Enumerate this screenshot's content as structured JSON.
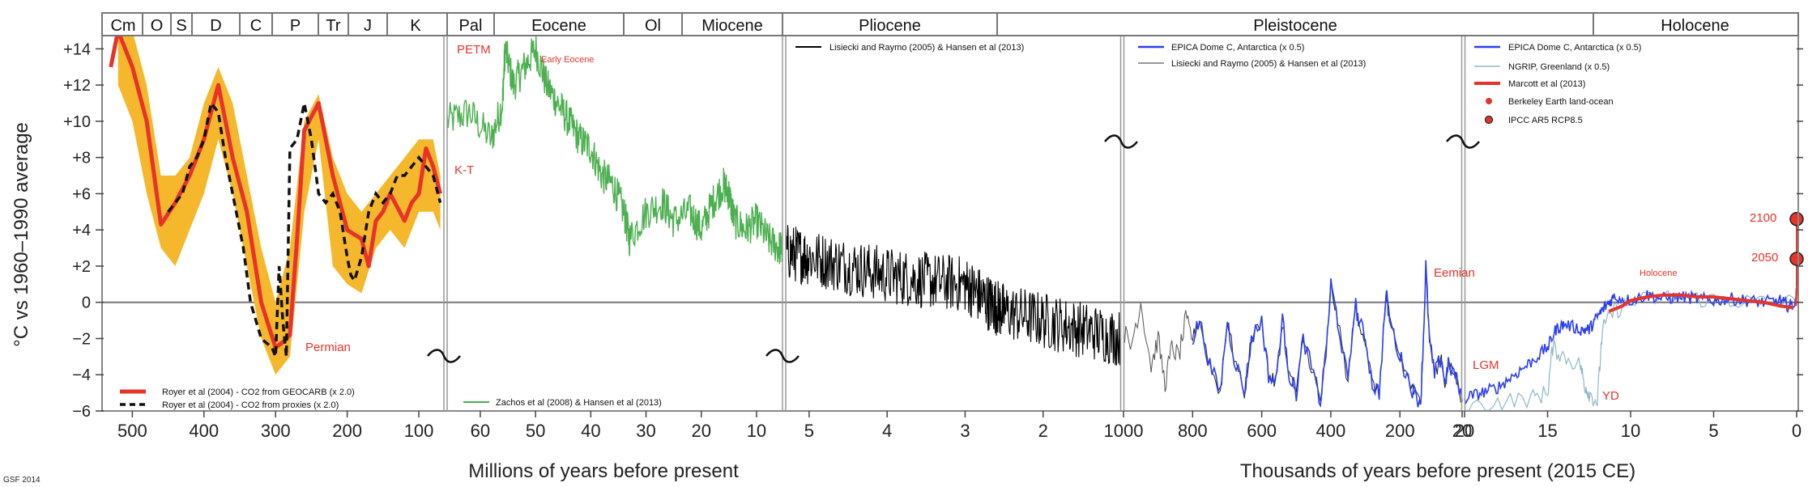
{
  "chart_data": {
    "type": "line",
    "title": "",
    "ylabel": "°C vs 1960–1990 average",
    "xlabel_left": "Millions of years before present",
    "xlabel_right": "Thousands of years before present (2015 CE)",
    "footer": "GSF 2014",
    "ylim": [
      -6,
      15
    ],
    "yticks": [
      -6,
      -4,
      -2,
      0,
      2,
      4,
      6,
      8,
      10,
      12,
      14
    ],
    "ytick_labels": [
      "−6",
      "−4",
      "−2",
      "0",
      "+2",
      "+4",
      "+6",
      "+8",
      "+10",
      "+12",
      "+14"
    ],
    "eras": [
      "Cm",
      "O",
      "S",
      "D",
      "C",
      "P",
      "Tr",
      "J",
      "K",
      "Pal",
      "Eocene",
      "Ol",
      "Miocene",
      "Pliocene",
      "Pleistocene",
      "Holocene"
    ],
    "panels": [
      {
        "name": "Phanerozoic",
        "xlim": [
          540,
          65
        ],
        "xticks": [
          500,
          400,
          300,
          200,
          100
        ],
        "xtick_labels": [
          "500",
          "400",
          "300",
          "200",
          "100"
        ],
        "series": [
          {
            "name": "Royer et al (2004) - CO2 from GEOCARB (x 2.0)",
            "color": "#e8332a",
            "x": [
              530,
              520,
              500,
              480,
              460,
              440,
              420,
              400,
              380,
              360,
              340,
              320,
              300,
              290,
              280,
              270,
              260,
              240,
              220,
              200,
              180,
              170,
              160,
              150,
              140,
              120,
              110,
              100,
              90,
              80,
              70
            ],
            "y": [
              13,
              15,
              13,
              10,
              4.3,
              5.5,
              7,
              9,
              12,
              8,
              5,
              0,
              -2.5,
              -2.2,
              -1.8,
              3.5,
              9.5,
              11,
              7,
              4,
              3.5,
              2,
              4.5,
              5,
              6,
              4.5,
              5.5,
              6,
              8.5,
              7.5,
              6
            ]
          },
          {
            "name": "Royer et al (2004) - CO2 from proxies (x 2.0)",
            "color": "#111111",
            "x": [
              450,
              440,
              430,
              420,
              410,
              400,
              390,
              380,
              370,
              360,
              345,
              335,
              320,
              305,
              300,
              295,
              290,
              285,
              280,
              270,
              260,
              250,
              240,
              230,
              220,
              210,
              200,
              195,
              190,
              180,
              170,
              160,
              150,
              140,
              130,
              120,
              110,
              100,
              90,
              80,
              70
            ],
            "y": [
              5,
              5.5,
              6,
              7.5,
              8,
              9,
              11,
              10.5,
              8,
              6,
              3,
              0,
              -2,
              -2.5,
              -3,
              2,
              -1,
              -3,
              8.5,
              9,
              11,
              9,
              6,
              5.5,
              6,
              5,
              2.5,
              1.5,
              1.2,
              2.5,
              5,
              6,
              5.5,
              6,
              7,
              7,
              7.5,
              8,
              7.5,
              7,
              5.5
            ]
          }
        ],
        "band": {
          "name": "uncertainty",
          "color": "#f5b82c",
          "x": [
            520,
            500,
            480,
            460,
            440,
            420,
            400,
            380,
            360,
            340,
            320,
            300,
            280,
            260,
            240,
            220,
            200,
            180,
            160,
            140,
            120,
            100,
            80,
            70
          ],
          "upper": [
            15,
            15,
            12,
            7,
            7,
            8,
            11,
            13,
            11,
            7,
            3,
            0,
            3,
            10,
            11.5,
            8,
            6,
            5,
            6,
            7,
            8,
            9,
            9,
            7
          ],
          "lower": [
            12,
            10,
            6,
            3,
            2,
            4,
            6,
            9,
            6,
            2,
            -2,
            -4,
            -3,
            5,
            9,
            2,
            1,
            0.5,
            3,
            4,
            3,
            5,
            5,
            4
          ]
        },
        "annotations": [
          "Permian"
        ]
      },
      {
        "name": "Cenozoic",
        "xlim": [
          66,
          5.3
        ],
        "xticks": [
          60,
          50,
          40,
          30,
          20,
          10
        ],
        "xtick_labels": [
          "60",
          "50",
          "40",
          "30",
          "20",
          "10"
        ],
        "series": [
          {
            "name": "Zachos et al (2008) & Hansen et al (2013)",
            "color": "#4caf50",
            "x": [
              66,
              62,
              58,
              56,
              55.5,
              54,
              52,
              50,
              48,
              46,
              44,
              42,
              40,
              38,
              36,
              34,
              33,
              30,
              27,
              25,
              22,
              20,
              18,
              16,
              15,
              14,
              12,
              10,
              8,
              6,
              5.3
            ],
            "y": [
              10,
              10.5,
              9,
              11,
              14,
              12,
              13,
              14,
              12,
              11,
              10,
              9,
              8.5,
              7,
              6.5,
              5,
              3.5,
              5,
              5.5,
              4.5,
              5,
              4,
              5.5,
              6.5,
              6,
              4.5,
              4,
              4.5,
              3.5,
              3,
              3
            ]
          }
        ],
        "annotations": [
          "PETM",
          "Early Eocene",
          "K-T"
        ]
      },
      {
        "name": "Pliocene",
        "xlim": [
          5.3,
          1
        ],
        "xticks": [
          5,
          4,
          3,
          2
        ],
        "xtick_labels": [
          "5",
          "4",
          "3",
          "2"
        ],
        "series": [
          {
            "name": "Lisiecki and Raymo (2005) & Hansen et al (2013)",
            "color": "#000000",
            "x": [
              5.3,
              5.0,
              4.5,
              4.0,
              3.5,
              3.0,
              2.7,
              2.5,
              2.0,
              1.5,
              1.0
            ],
            "y": [
              2.8,
              2.5,
              2.0,
              1.5,
              1.2,
              1.0,
              0,
              -0.5,
              -1.0,
              -1.5,
              -2.0
            ]
          }
        ],
        "annotations": []
      },
      {
        "name": "Pleistocene",
        "xlim": [
          1000,
          20
        ],
        "xticks": [
          1000,
          800,
          600,
          400,
          200,
          20
        ],
        "xtick_labels": [
          "1000",
          "800",
          "600",
          "400",
          "200",
          "20"
        ],
        "series": [
          {
            "name": "EPICA Dome C, Antarctica (x 0.5)",
            "color": "#2b3ff0",
            "x": [
              800,
              780,
              750,
              720,
              700,
              680,
              650,
              630,
              600,
              580,
              560,
              540,
              520,
              500,
              480,
              450,
              430,
              410,
              400,
              380,
              350,
              330,
              320,
              300,
              280,
              260,
              240,
              230,
              200,
              180,
              160,
              140,
              130,
              125,
              115,
              100,
              80,
              70,
              60,
              40,
              20
            ],
            "y": [
              -2,
              -1,
              -3.5,
              -5,
              -1,
              -3,
              -5,
              -2,
              -1,
              -4,
              -4.5,
              -1,
              -4,
              -5,
              -2,
              -4,
              -5.5,
              -2,
              1,
              -1,
              -4.5,
              0,
              -1,
              -2,
              -4.5,
              -5,
              0.5,
              -1,
              -3,
              -4,
              -5,
              -5.5,
              -1,
              2,
              -2,
              -4,
              -3,
              -4.5,
              -3.5,
              -4,
              -5.5
            ]
          },
          {
            "name": "Lisiecki and Raymo (2005) & Hansen et al (2013)",
            "color": "#555555",
            "x": [
              1000,
              980,
              950,
              920,
              900,
              880,
              860,
              840,
              820,
              800
            ],
            "y": [
              -1.5,
              -2.5,
              0,
              -3.5,
              -2,
              -4.5,
              -2.5,
              -3,
              -1,
              -2
            ]
          }
        ],
        "annotations": [
          "Eemian",
          "LGM"
        ]
      },
      {
        "name": "Holocene",
        "xlim": [
          20,
          0
        ],
        "xticks": [
          20,
          15,
          10,
          5,
          0
        ],
        "xtick_labels": [
          "20",
          "15",
          "10",
          "5",
          "0"
        ],
        "series": [
          {
            "name": "EPICA Dome C, Antarctica (x 0.5)",
            "color": "#2b3ff0",
            "x": [
              20,
              19,
              18,
              17,
              16,
              15,
              14.5,
              14,
              13,
              12.5,
              12,
              11.5,
              11,
              10,
              9,
              8,
              7,
              6,
              5,
              4,
              3,
              2,
              1,
              0.5,
              0
            ],
            "y": [
              -5.3,
              -5,
              -4.7,
              -4,
              -3.3,
              -2.5,
              -1.5,
              -1.2,
              -1.5,
              -1.5,
              -0.8,
              -0.2,
              0.3,
              0.1,
              0.4,
              0.2,
              0.3,
              0.2,
              0.1,
              0.2,
              0.1,
              0.0,
              0.1,
              -0.2,
              0
            ]
          },
          {
            "name": "NGRIP, Greenland (x 0.5)",
            "color": "#8fb8c8",
            "x": [
              20,
              18,
              16,
              15,
              14.7,
              14,
              13,
              12.8,
              12.5,
              12,
              11.7,
              11,
              10,
              8,
              6,
              4,
              2,
              0
            ],
            "y": [
              -5.8,
              -5.5,
              -5.3,
              -5,
              -2.5,
              -3,
              -3.5,
              -4.5,
              -5,
              -5.5,
              -1.5,
              -0.5,
              0,
              0.3,
              0.2,
              0.1,
              0,
              0
            ]
          },
          {
            "name": "Marcott et al (2013)",
            "color": "#e8332a",
            "x": [
              11.3,
              10.5,
              10,
              9,
              8,
              7,
              6,
              5,
              4,
              3,
              2,
              1,
              0.2
            ],
            "y": [
              -0.5,
              -0.2,
              0.1,
              0.3,
              0.4,
              0.4,
              0.3,
              0.3,
              0.2,
              0.1,
              0.0,
              -0.2,
              -0.3
            ]
          },
          {
            "name": "Berkeley Earth land-ocean",
            "color": "#e8332a",
            "x": [
              0.05,
              0
            ],
            "y": [
              -0.2,
              0.8
            ]
          },
          {
            "name": "IPCC AR5 RCP8.5",
            "color": "#e8332a",
            "x": [
              0,
              0
            ],
            "y": [
              2.4,
              4.6
            ]
          }
        ],
        "annotations": [
          "YD",
          "Holocene",
          "2050",
          "2100"
        ]
      }
    ],
    "legends": {
      "phanerozoic": [
        "Royer et al (2004) - CO2 from GEOCARB (x 2.0)",
        "Royer et al (2004) - CO2 from proxies (x 2.0)"
      ],
      "cenozoic": [
        "Zachos et al (2008) & Hansen et al (2013)"
      ],
      "pliocene": [
        "Lisiecki and Raymo (2005) & Hansen et al (2013)"
      ],
      "pleistocene": [
        "EPICA Dome C, Antarctica (x 0.5)",
        "Lisiecki and Raymo (2005) & Hansen et al (2013)"
      ],
      "holocene": [
        "EPICA Dome C, Antarctica (x 0.5)",
        "NGRIP, Greenland (x 0.5)",
        "Marcott et al (2013)",
        "Berkeley Earth land-ocean",
        "IPCC AR5 RCP8.5"
      ]
    }
  }
}
